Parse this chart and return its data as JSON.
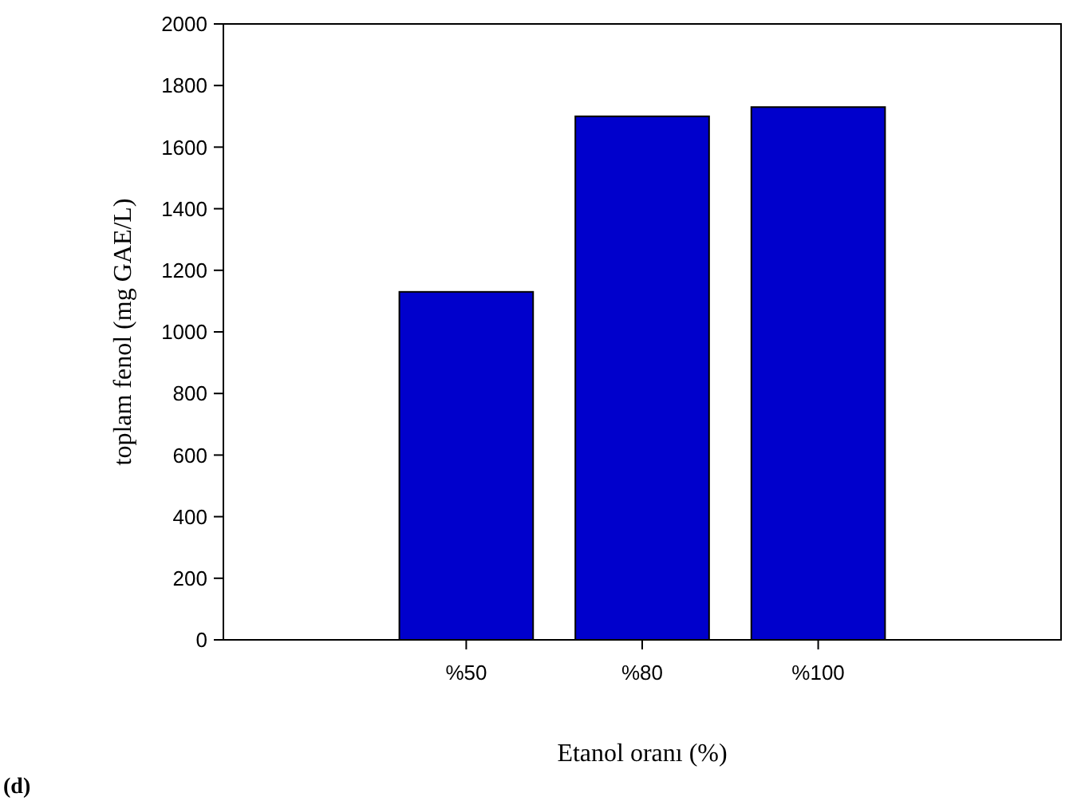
{
  "chart_data": {
    "type": "bar",
    "xlabel": "Etanol oranı (%)",
    "ylabel": "toplam fenol (mg GAE/L)",
    "categories": [
      null,
      "%50",
      "%80",
      "%100",
      null
    ],
    "values": [
      null,
      1130,
      1700,
      1730,
      null
    ],
    "color": "#0000cc",
    "ylim": [
      0,
      2000
    ],
    "yticks": [
      0,
      200,
      400,
      600,
      800,
      1000,
      1200,
      1400,
      1600,
      1800,
      2000
    ],
    "grid": false,
    "annotations": [
      "(d)"
    ]
  }
}
